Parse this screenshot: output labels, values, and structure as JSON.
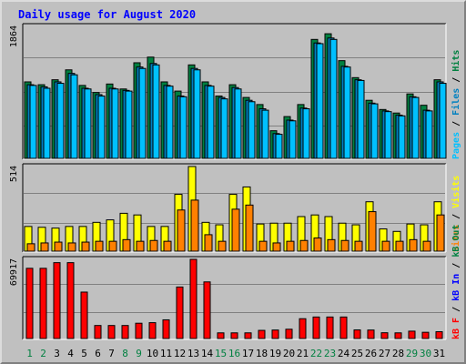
{
  "title": "Daily usage for August 2020",
  "colors": {
    "hits": "#008040",
    "files": "#0080c0",
    "pages": "#00c0ff",
    "visits": "#ffff00",
    "sites": "#ff8000",
    "kbin": "#0000ff",
    "kbout": "#008040",
    "kbf": "#ff0000",
    "weekend_label": "#008040",
    "weekday_label": "#000000",
    "grid": "#808080",
    "plot_bg": "#c0c0c0"
  },
  "legends": {
    "top": [
      {
        "text": "Hits",
        "color": "#008040"
      },
      {
        "text": "Files",
        "color": "#0080c0"
      },
      {
        "text": "Pages",
        "color": "#00c0ff"
      }
    ],
    "mid": [
      {
        "text": "Visits",
        "color": "#ffff00"
      },
      {
        "text": "Sites",
        "color": "#ff8000"
      }
    ],
    "bot": [
      {
        "text": "kB Out",
        "color": "#008040"
      },
      {
        "text": "kB In",
        "color": "#0000ff"
      },
      {
        "text": "kB F",
        "color": "#ff0000"
      }
    ]
  },
  "chart_data": [
    {
      "type": "bar",
      "name": "hits-files-pages",
      "ymax_label": "1864",
      "ylim": [
        0,
        1864
      ],
      "categories": [
        "1",
        "2",
        "3",
        "4",
        "5",
        "6",
        "7",
        "8",
        "9",
        "10",
        "11",
        "12",
        "13",
        "14",
        "15",
        "16",
        "17",
        "18",
        "19",
        "20",
        "21",
        "22",
        "23",
        "24",
        "25",
        "26",
        "27",
        "28",
        "29",
        "30",
        "31"
      ],
      "weekend_days": [
        "1",
        "2",
        "8",
        "9",
        "15",
        "16",
        "22",
        "23",
        "29",
        "30"
      ],
      "series": [
        {
          "name": "Hits",
          "values": [
            1080,
            1040,
            1110,
            1250,
            1030,
            930,
            1050,
            980,
            1350,
            1430,
            1080,
            950,
            1320,
            1080,
            880,
            1040,
            860,
            760,
            390,
            590,
            760,
            1680,
            1760,
            1380,
            1140,
            820,
            690,
            640,
            910,
            750,
            1110
          ]
        },
        {
          "name": "Files",
          "values": [
            1040,
            1010,
            1080,
            1200,
            990,
            900,
            990,
            960,
            1290,
            1340,
            1030,
            880,
            1270,
            1030,
            860,
            1000,
            820,
            700,
            350,
            540,
            710,
            1630,
            1700,
            1300,
            1110,
            780,
            670,
            610,
            870,
            680,
            1080
          ]
        },
        {
          "name": "Pages",
          "values": [
            1030,
            990,
            1060,
            1180,
            980,
            880,
            980,
            950,
            1270,
            1320,
            1020,
            870,
            1250,
            1020,
            840,
            980,
            800,
            680,
            340,
            530,
            700,
            1620,
            1680,
            1290,
            1100,
            770,
            660,
            600,
            860,
            670,
            1060
          ]
        }
      ]
    },
    {
      "type": "bar",
      "name": "visits-sites",
      "ymax_label": "514",
      "ylim": [
        0,
        514
      ],
      "categories": [
        "1",
        "2",
        "3",
        "4",
        "5",
        "6",
        "7",
        "8",
        "9",
        "10",
        "11",
        "12",
        "13",
        "14",
        "15",
        "16",
        "17",
        "18",
        "19",
        "20",
        "21",
        "22",
        "23",
        "24",
        "25",
        "26",
        "27",
        "28",
        "29",
        "30",
        "31"
      ],
      "series": [
        {
          "name": "Visits",
          "values": [
            150,
            145,
            140,
            150,
            150,
            175,
            190,
            230,
            220,
            150,
            150,
            345,
            514,
            175,
            160,
            345,
            390,
            165,
            170,
            170,
            210,
            220,
            210,
            170,
            160,
            300,
            135,
            120,
            165,
            160,
            300
          ]
        },
        {
          "name": "Sites",
          "values": [
            45,
            50,
            55,
            50,
            55,
            60,
            60,
            70,
            60,
            65,
            60,
            250,
            310,
            100,
            60,
            255,
            280,
            60,
            50,
            60,
            65,
            80,
            70,
            65,
            60,
            240,
            60,
            60,
            70,
            60,
            220
          ]
        }
      ]
    },
    {
      "type": "bar",
      "name": "kbytes",
      "ymax_label": "69917",
      "ylim": [
        0,
        69917
      ],
      "categories": [
        "1",
        "2",
        "3",
        "4",
        "5",
        "6",
        "7",
        "8",
        "9",
        "10",
        "11",
        "12",
        "13",
        "14",
        "15",
        "16",
        "17",
        "18",
        "19",
        "20",
        "21",
        "22",
        "23",
        "24",
        "25",
        "26",
        "27",
        "28",
        "29",
        "30",
        "31"
      ],
      "series": [
        {
          "name": "kB F",
          "values": [
            62000,
            62000,
            67000,
            67000,
            41000,
            11500,
            11500,
            11500,
            13500,
            14000,
            16500,
            45500,
            69917,
            50000,
            5000,
            5000,
            5000,
            7200,
            7500,
            8200,
            17500,
            19000,
            19000,
            19000,
            7600,
            7500,
            5100,
            5000,
            6500,
            5500,
            6000
          ]
        }
      ]
    }
  ]
}
